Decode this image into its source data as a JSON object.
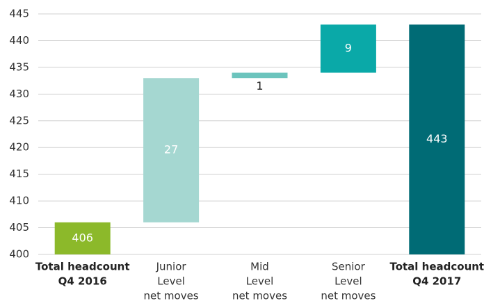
{
  "chart_data": {
    "type": "waterfall",
    "categories": [
      [
        "Total headcount",
        "Q4 2016"
      ],
      [
        "Junior",
        "Level",
        "net moves"
      ],
      [
        "Mid",
        "Level",
        "net moves"
      ],
      [
        "Senior",
        "Level",
        "net moves"
      ],
      [
        "Total headcount",
        "Q4 2017"
      ]
    ],
    "measure": [
      "total",
      "relative",
      "relative",
      "relative",
      "total"
    ],
    "values": [
      406,
      27,
      1,
      9,
      443
    ],
    "colors": [
      "#8cb92a",
      "#a5d7d1",
      "#6cc4bd",
      "#0aa9a8",
      "#006b75"
    ],
    "ylim": [
      400,
      445
    ],
    "yticks": [
      400,
      405,
      410,
      415,
      420,
      425,
      430,
      435,
      440,
      445
    ],
    "grid": true
  }
}
